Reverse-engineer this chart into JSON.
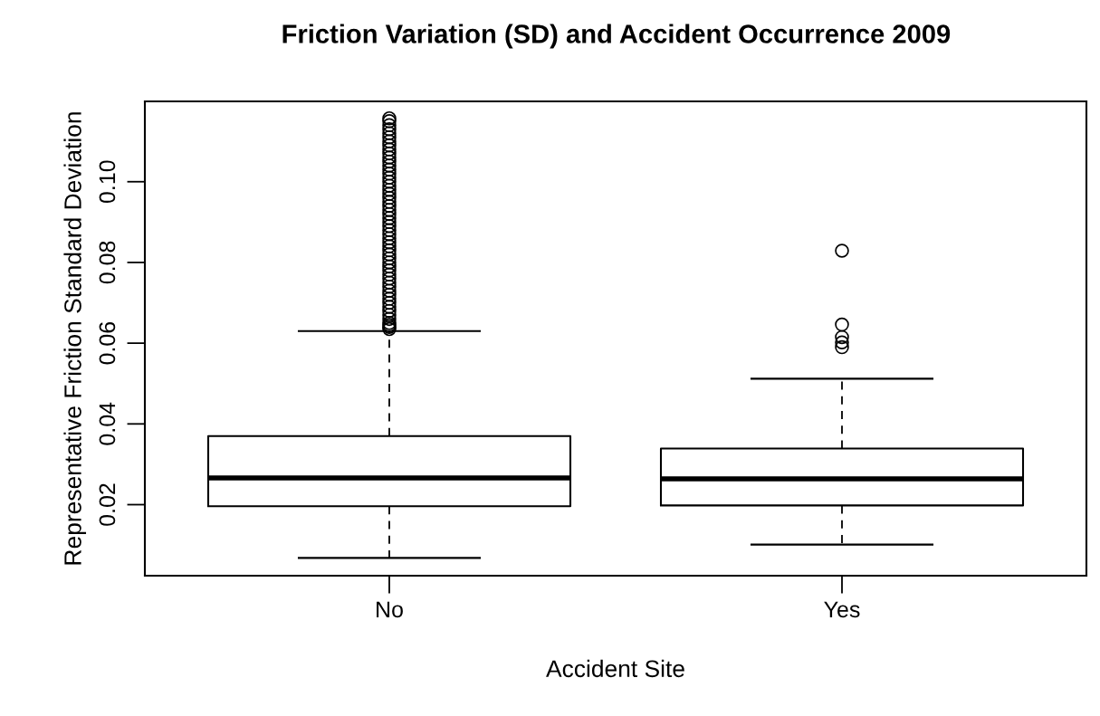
{
  "chart_data": {
    "type": "box",
    "title": "Friction Variation (SD) and Accident Occurrence 2009",
    "xlabel": "Accident Site",
    "ylabel": "Representative Friction Standard Deviation",
    "categories": [
      "No",
      "Yes"
    ],
    "boxes": [
      {
        "low": 0.0068,
        "q1": 0.0196,
        "median": 0.0266,
        "q3": 0.037,
        "high": 0.063,
        "outliers": [
          0.0635,
          0.064,
          0.0645,
          0.065,
          0.066,
          0.067,
          0.068,
          0.069,
          0.07,
          0.071,
          0.072,
          0.073,
          0.074,
          0.075,
          0.076,
          0.077,
          0.078,
          0.079,
          0.08,
          0.081,
          0.082,
          0.083,
          0.084,
          0.085,
          0.086,
          0.087,
          0.088,
          0.089,
          0.09,
          0.091,
          0.092,
          0.093,
          0.094,
          0.095,
          0.096,
          0.097,
          0.098,
          0.099,
          0.1,
          0.101,
          0.102,
          0.103,
          0.104,
          0.105,
          0.106,
          0.107,
          0.108,
          0.109,
          0.11,
          0.111,
          0.112,
          0.113,
          0.114,
          0.115,
          0.1157
        ]
      },
      {
        "low": 0.0101,
        "q1": 0.0198,
        "median": 0.0264,
        "q3": 0.0339,
        "high": 0.0512,
        "outliers": [
          0.059,
          0.0602,
          0.0615,
          0.0646,
          0.0829
        ]
      }
    ],
    "ylim": [
      0.0024,
      0.1199
    ],
    "yticks": [
      {
        "value": 0.02,
        "label": "0.02"
      },
      {
        "value": 0.04,
        "label": "0.04"
      },
      {
        "value": 0.06,
        "label": "0.06"
      },
      {
        "value": 0.08,
        "label": "0.08"
      },
      {
        "value": 0.1,
        "label": "0.10"
      }
    ],
    "grid": false,
    "marker": "circle"
  }
}
